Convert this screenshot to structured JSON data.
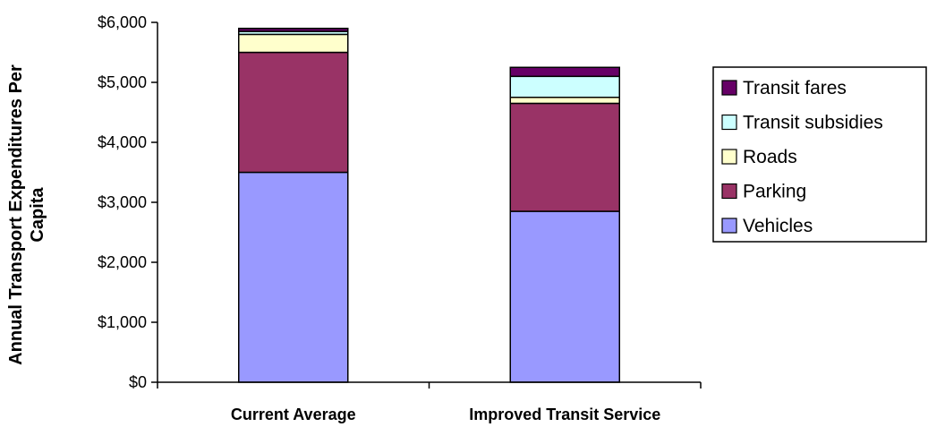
{
  "chart_data": {
    "type": "bar",
    "stacked": true,
    "categories": [
      "Current Average",
      "Improved Transit Service"
    ],
    "ylabel_lines": [
      "Annual Transport Expenditures Per",
      "Capita"
    ],
    "ylim": [
      0,
      6000
    ],
    "yticks": [
      0,
      1000,
      2000,
      3000,
      4000,
      5000,
      6000
    ],
    "ytick_labels": [
      "$0",
      "$1,000",
      "$2,000",
      "$3,000",
      "$4,000",
      "$5,000",
      "$6,000"
    ],
    "grid": false,
    "legend_position": "right",
    "series": [
      {
        "name": "Vehicles",
        "color": "#9999ff",
        "values": [
          3500,
          2850
        ]
      },
      {
        "name": "Parking",
        "color": "#993366",
        "values": [
          2000,
          1800
        ]
      },
      {
        "name": "Roads",
        "color": "#ffffcc",
        "values": [
          300,
          100
        ]
      },
      {
        "name": "Transit subsidies",
        "color": "#ccffff",
        "values": [
          50,
          350
        ]
      },
      {
        "name": "Transit fares",
        "color": "#660066",
        "values": [
          50,
          150
        ]
      }
    ]
  }
}
